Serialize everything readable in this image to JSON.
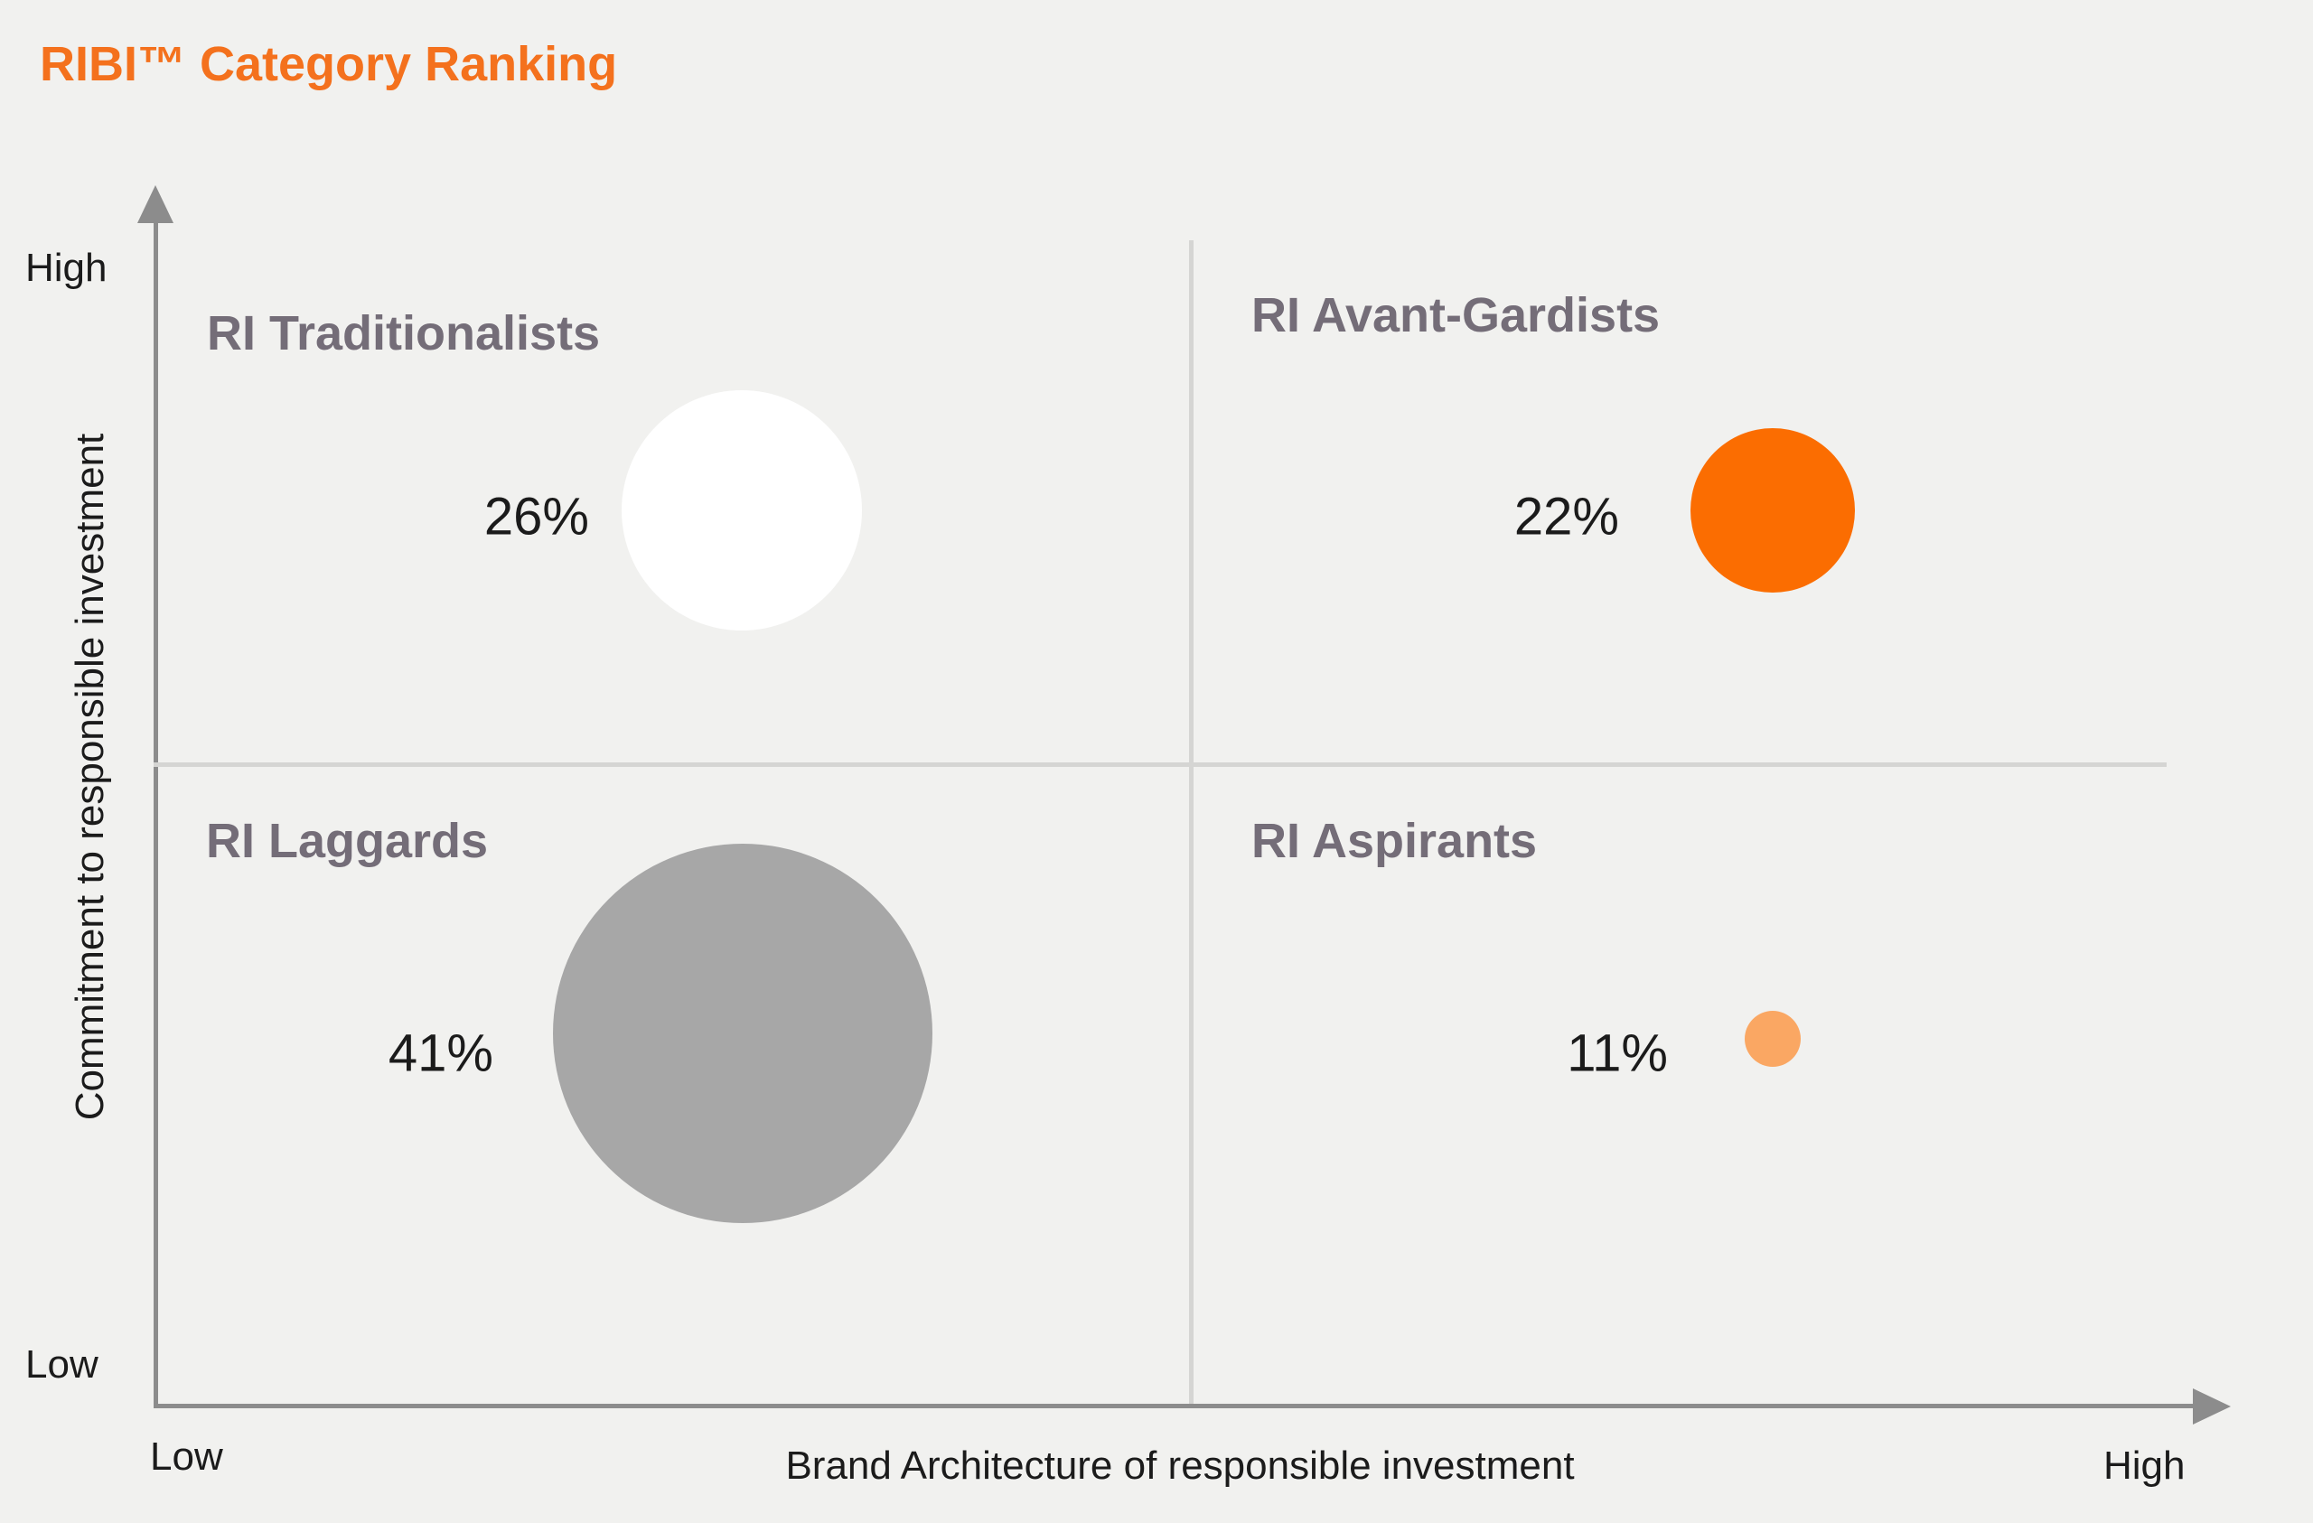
{
  "title": "RIBI™ Category Ranking",
  "axes": {
    "y": {
      "title": "Commitment to responsible investment",
      "high_label": "High",
      "low_label": "Low"
    },
    "x": {
      "title": "Brand Architecture of responsible investment",
      "low_label": "Low",
      "high_label": "High"
    }
  },
  "quadrants": [
    {
      "id": "ri-traditionalists",
      "label": "RI Traditionalists",
      "value": "26%",
      "percent": 26,
      "position": "top-left",
      "bubble_color": "#ffffff"
    },
    {
      "id": "ri-avant-gardists",
      "label": "RI Avant-Gardists",
      "value": "22%",
      "percent": 22,
      "position": "top-right",
      "bubble_color": "#fb6d01"
    },
    {
      "id": "ri-laggards",
      "label": "RI Laggards",
      "value": "41%",
      "percent": 41,
      "position": "bottom-left",
      "bubble_color": "#a7a7a7"
    },
    {
      "id": "ri-aspirants",
      "label": "RI Aspirants",
      "value": "11%",
      "percent": 11,
      "position": "bottom-right",
      "bubble_color": "#faa763"
    }
  ],
  "colors": {
    "background": "#f1f1ef",
    "title_orange": "#f4711d",
    "axis_gray": "#8c8c8c",
    "divider_gray": "#d5d5d3",
    "quadrant_label_gray": "#746d78",
    "text_black": "#1b1b1b",
    "bubble_white": "#ffffff",
    "bubble_orange": "#fb6d01",
    "bubble_gray": "#a7a7a7",
    "bubble_light_orange": "#faa763"
  },
  "chart_data": {
    "type": "scatter",
    "subtype": "quadrant-bubble",
    "title": "RIBI™ Category Ranking",
    "xlabel": "Brand Architecture of responsible investment",
    "ylabel": "Commitment to responsible investment",
    "x_axis_range_labels": [
      "Low",
      "High"
    ],
    "y_axis_range_labels": [
      "Low",
      "High"
    ],
    "grid": "single vertical and horizontal divider forming four quadrants",
    "legend": "none",
    "series": [
      {
        "name": "RI Traditionalists",
        "quadrant": "top-left",
        "x": "low",
        "y": "high",
        "value_pct": 26,
        "bubble_color": "#ffffff"
      },
      {
        "name": "RI Avant-Gardists",
        "quadrant": "top-right",
        "x": "high",
        "y": "high",
        "value_pct": 22,
        "bubble_color": "#fb6d01"
      },
      {
        "name": "RI Laggards",
        "quadrant": "bottom-left",
        "x": "low",
        "y": "low",
        "value_pct": 41,
        "bubble_color": "#a7a7a7"
      },
      {
        "name": "RI Aspirants",
        "quadrant": "bottom-right",
        "x": "high",
        "y": "low",
        "value_pct": 11,
        "bubble_color": "#faa763"
      }
    ]
  }
}
